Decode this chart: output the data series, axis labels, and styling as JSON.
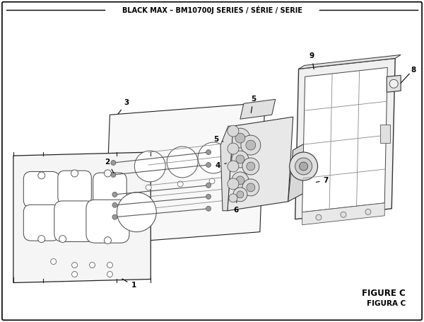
{
  "title": "BLACK MAX – BM10700J SERIES / SÉRIE / SERIE",
  "figure_label": "FIGURE C",
  "figura_label": "FIGURA C",
  "bg_color": "#ffffff",
  "border_color": "#000000",
  "text_color": "#000000",
  "fig_width": 6.0,
  "fig_height": 4.55,
  "dpi": 100
}
